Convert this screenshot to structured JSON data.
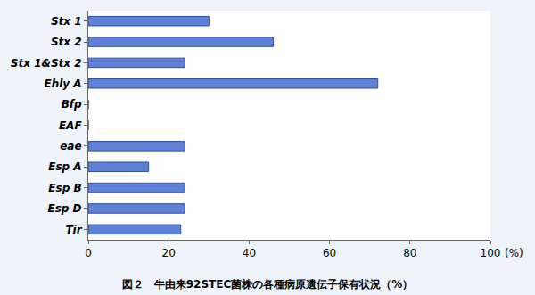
{
  "chart_data": {
    "type": "bar",
    "orientation": "horizontal",
    "title": "図２　牛由来92STEC菌株の各種病原遺伝子保有状況（%）",
    "x_label": "(%)",
    "categories": [
      "Stx 1",
      "Stx 2",
      "Stx 1&Stx 2",
      "Ehly A",
      "Bfp",
      "EAF",
      "eae",
      "Esp A",
      "Esp B",
      "Esp D",
      "Tir"
    ],
    "values": [
      30,
      46,
      24,
      72,
      0,
      0,
      24,
      15,
      24,
      24,
      23
    ],
    "color": "#5f82d8",
    "xlim": [
      0,
      100
    ],
    "xticks": [
      0,
      20,
      40,
      60,
      80,
      100
    ],
    "grid": false
  }
}
